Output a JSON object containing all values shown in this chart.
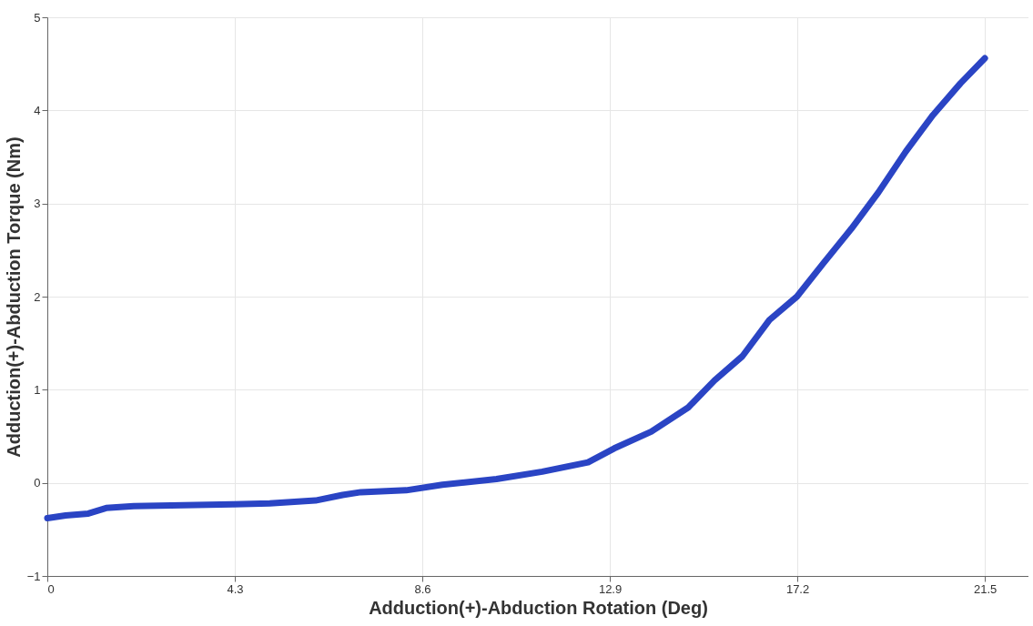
{
  "chart_data": {
    "type": "line",
    "xlabel": "Adduction(+)-Abduction Rotation (Deg)",
    "ylabel": "Adduction(+)-Abduction Torque (Nm)",
    "x": [
      0,
      0.42,
      0.94,
      1.35,
      1.98,
      4.27,
      5.1,
      6.15,
      6.77,
      7.19,
      8.23,
      9.06,
      10.3,
      11.35,
      12.4,
      13.0,
      13.85,
      14.7,
      15.3,
      15.94,
      16.56,
      17.19,
      17.8,
      18.44,
      19.06,
      19.69,
      20.31,
      20.94,
      21.5
    ],
    "series": [
      {
        "color": "#2a44c4",
        "values": [
          -0.38,
          -0.35,
          -0.33,
          -0.27,
          -0.25,
          -0.23,
          -0.22,
          -0.19,
          -0.13,
          -0.1,
          -0.08,
          -0.02,
          0.04,
          0.12,
          0.22,
          0.37,
          0.55,
          0.81,
          1.1,
          1.36,
          1.75,
          2.0,
          2.36,
          2.73,
          3.12,
          3.56,
          3.95,
          4.29,
          4.56
        ]
      }
    ],
    "xlim": [
      0,
      22.5
    ],
    "xticks": [
      0,
      4.3,
      8.6,
      12.9,
      17.2,
      21.5
    ],
    "ylim": [
      -1,
      5
    ],
    "yticks": [
      -1,
      0,
      1,
      2,
      3,
      4,
      5
    ],
    "grid": true
  }
}
